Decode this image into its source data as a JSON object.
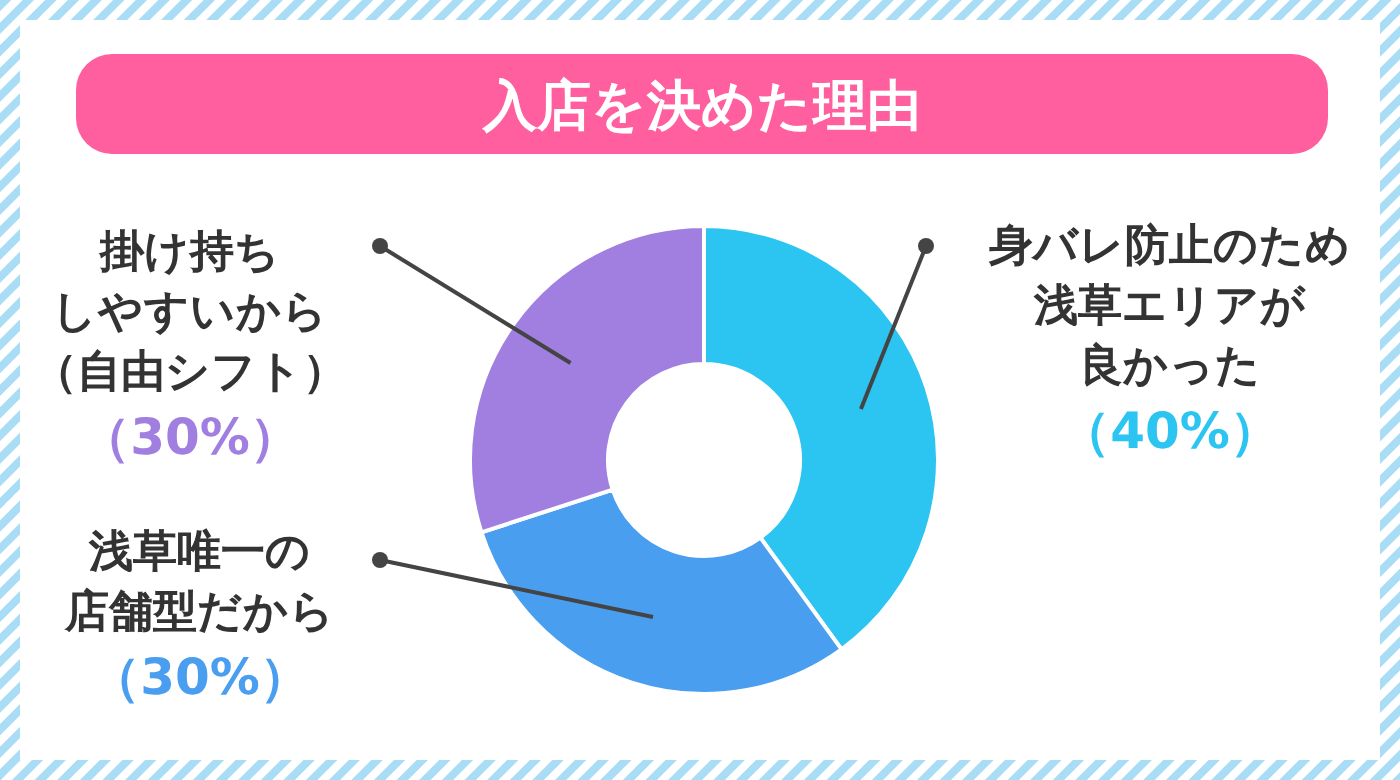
{
  "chart_data": {
    "type": "donut",
    "title": "入店を決めた理由",
    "categories": [
      "身バレ防止のため浅草エリアが良かった",
      "浅草唯一の店舗型だから",
      "掛け持ちしやすいから（自由シフト）"
    ],
    "values": [
      40,
      30,
      30
    ],
    "colors": [
      "#2cc4f0",
      "#4a9eef",
      "#a17fe0"
    ],
    "value_labels": [
      "（40%）",
      "（30%）",
      "（30%）"
    ]
  }
}
